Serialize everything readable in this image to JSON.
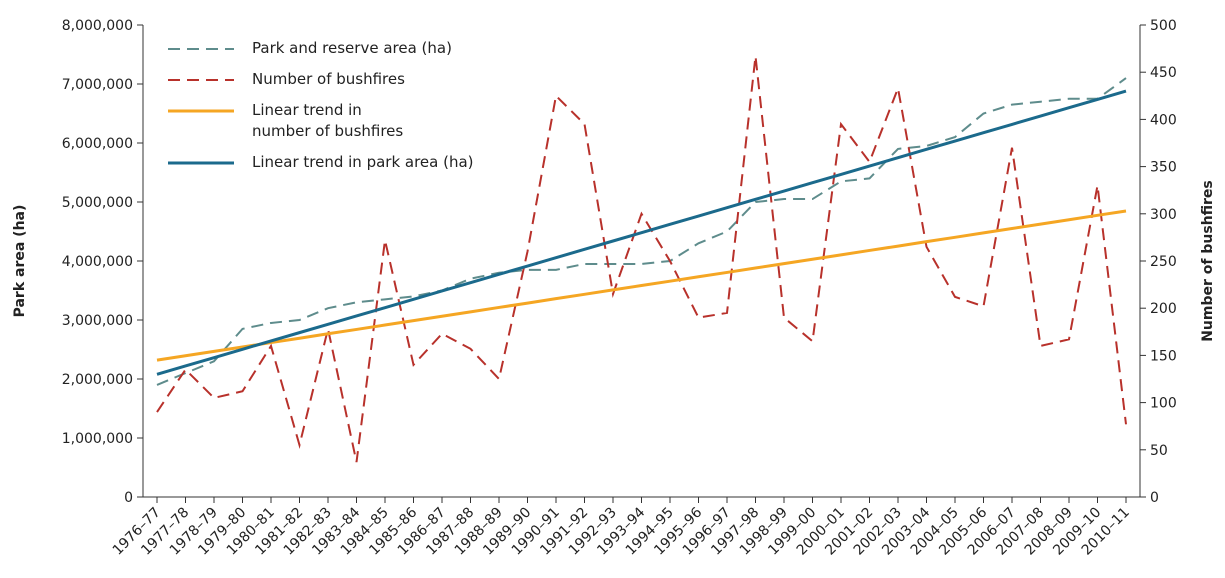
{
  "chart_data": {
    "type": "line",
    "y_label": "Park area (ha)",
    "y2_label": "Number of bushfires",
    "categories": [
      "1976–77",
      "1977–78",
      "1978–79",
      "1979–80",
      "1980–81",
      "1981–82",
      "1982–83",
      "1983–84",
      "1984–85",
      "1985–86",
      "1986–87",
      "1987–88",
      "1988–89",
      "1989–90",
      "1990–91",
      "1991–92",
      "1992–93",
      "1993–94",
      "1994–95",
      "1995–96",
      "1996–97",
      "1997–98",
      "1998–99",
      "1999–00",
      "2000–01",
      "2001–02",
      "2002–03",
      "2003–04",
      "2004–05",
      "2005–06",
      "2006–07",
      "2007–08",
      "2008–09",
      "2009–10",
      "2010–11"
    ],
    "ylim": [
      0,
      8000000
    ],
    "yticks": [
      0,
      {
        "value": 1000000,
        "label": "1,000,000"
      },
      {
        "value": 2000000,
        "label": "2,000,000"
      },
      {
        "value": 3000000,
        "label": "3,000,000"
      },
      {
        "value": 4000000,
        "label": "4,000,000"
      },
      {
        "value": 5000000,
        "label": "5,000,000"
      },
      {
        "value": 6000000,
        "label": "6,000,000"
      },
      {
        "value": 7000000,
        "label": "7,000,000"
      },
      {
        "value": 8000000,
        "label": "8,000,000"
      }
    ],
    "y2lim": [
      0,
      500
    ],
    "y2ticks": [
      0,
      50,
      100,
      150,
      200,
      250,
      300,
      350,
      400,
      450,
      500
    ],
    "series": [
      {
        "name": "Park and reserve area (ha)",
        "color": "#5e8c8c",
        "dashed": true,
        "values": [
          1900000,
          2100000,
          2300000,
          2850000,
          2950000,
          3000000,
          3200000,
          3300000,
          3350000,
          3400000,
          3500000,
          3700000,
          3800000,
          3850000,
          3850000,
          3950000,
          3950000,
          3950000,
          4000000,
          4300000,
          4500000,
          5000000,
          5050000,
          5050000,
          5350000,
          5400000,
          5900000,
          5950000,
          6100000,
          6500000,
          6650000,
          6700000,
          6750000,
          6750000,
          7100000
        ]
      },
      {
        "name": "Number of bushfires",
        "color": "#b8312b",
        "dashed": true,
        "axis": "y2",
        "values": [
          90,
          135,
          105,
          112,
          160,
          55,
          178,
          37,
          272,
          140,
          173,
          157,
          125,
          260,
          425,
          395,
          215,
          300,
          250,
          190,
          195,
          467,
          190,
          165,
          395,
          355,
          433,
          265,
          212,
          202,
          370,
          160,
          167,
          330,
          77
        ]
      },
      {
        "name": "Linear trend in\nnumber of bushfires",
        "color": "#f5a623",
        "dashed": false,
        "axis": "y2",
        "values": [
          145,
          149.6,
          154.3,
          158.9,
          163.6,
          168.2,
          172.9,
          177.5,
          182.2,
          186.8,
          191.5,
          196.1,
          200.8,
          205.4,
          210.1,
          214.7,
          219.4,
          224,
          228.6,
          233.3,
          237.9,
          242.6,
          247.2,
          251.9,
          256.5,
          261.2,
          265.8,
          270.5,
          275.1,
          279.8,
          284.4,
          289.1,
          293.7,
          298.4,
          303
        ]
      },
      {
        "name": "Linear trend in park area (ha)",
        "color": "#1b6a8c",
        "dashed": false,
        "values": [
          2080000,
          2221000,
          2362000,
          2504000,
          2645000,
          2786000,
          2927000,
          3068000,
          3209000,
          3351000,
          3492000,
          3633000,
          3774000,
          3915000,
          4056000,
          4198000,
          4339000,
          4480000,
          4621000,
          4762000,
          4904000,
          5045000,
          5186000,
          5327000,
          5468000,
          5609000,
          5751000,
          5892000,
          6033000,
          6174000,
          6315000,
          6456000,
          6598000,
          6739000,
          6880000
        ]
      }
    ]
  }
}
